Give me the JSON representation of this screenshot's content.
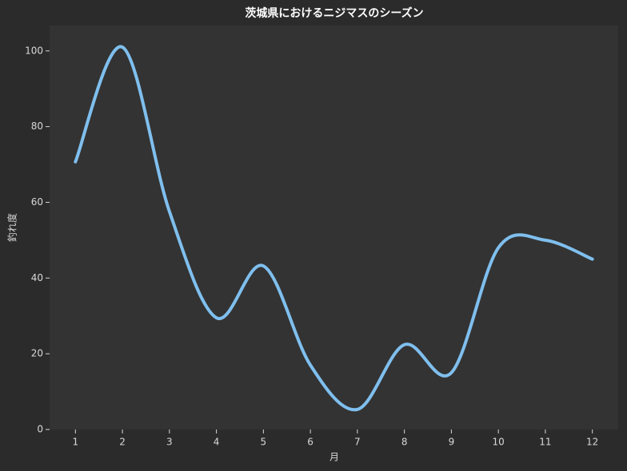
{
  "chart_data": {
    "type": "line",
    "title": "茨城県におけるニジマスのシーズン",
    "x_label": "月",
    "y_label": "釣れ度",
    "x": [
      1,
      2,
      3,
      4,
      5,
      6,
      7,
      8,
      9,
      10,
      11,
      12
    ],
    "series": [
      {
        "color": "#7fbfee",
        "values": [
          70.7,
          101,
          57.6,
          29.5,
          43.2,
          17,
          5.3,
          22.4,
          15,
          48,
          50,
          45
        ]
      }
    ],
    "xlim": [
      0.45,
      12.55
    ],
    "ylim": [
      0,
      106.7
    ],
    "xticks": [
      1,
      2,
      3,
      4,
      5,
      6,
      7,
      8,
      9,
      10,
      11,
      12
    ],
    "yticks": [
      0,
      20,
      40,
      60,
      80,
      100
    ],
    "grid": false
  }
}
